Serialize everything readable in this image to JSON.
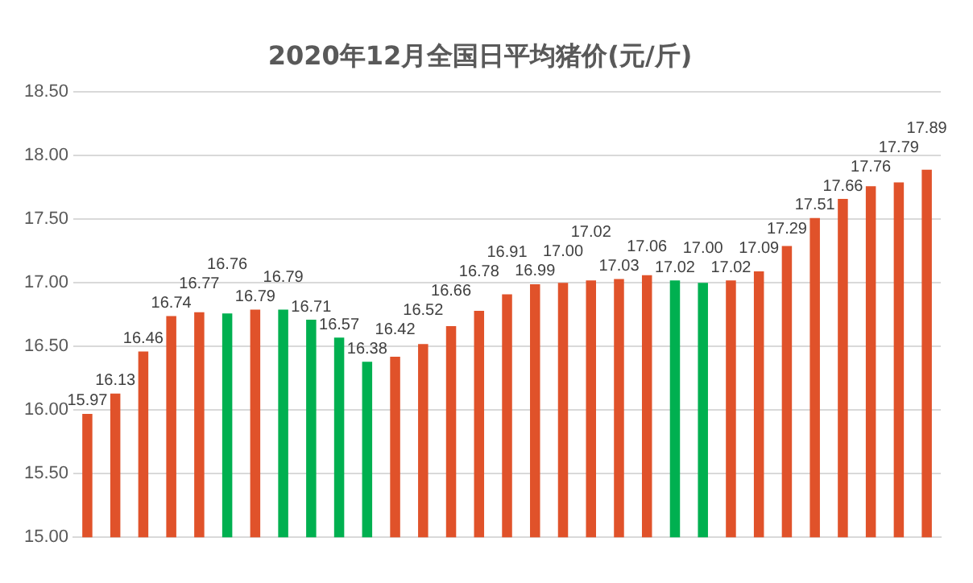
{
  "chart_data": {
    "type": "bar",
    "title": "2020年12月全国日平均猪价(元/斤)",
    "categories": [
      null,
      null,
      null,
      null,
      null,
      null,
      null,
      null,
      null,
      null,
      null,
      null,
      null,
      null,
      null,
      null,
      null,
      null,
      null,
      null,
      null,
      null,
      null,
      null,
      null,
      null,
      null,
      null,
      null,
      null,
      null
    ],
    "values": [
      15.97,
      16.13,
      16.46,
      16.74,
      16.77,
      16.76,
      16.79,
      16.79,
      16.71,
      16.57,
      16.38,
      16.42,
      16.52,
      16.66,
      16.78,
      16.91,
      16.99,
      17.0,
      17.02,
      17.03,
      17.06,
      17.02,
      17.0,
      17.02,
      17.09,
      17.29,
      17.51,
      17.66,
      17.76,
      17.79,
      17.89
    ],
    "value_labels": [
      "15.97",
      "16.13",
      "16.46",
      "16.74",
      "16.77",
      "16.76",
      "16.79",
      "16.79",
      "16.71",
      "16.57",
      "16.38",
      "16.42",
      "16.52",
      "16.66",
      "16.78",
      "16.91",
      "16.99",
      "17.00",
      "17.02",
      "17.03",
      "17.06",
      "17.02",
      "17.00",
      "17.02",
      "17.09",
      "17.29",
      "17.51",
      "17.66",
      "17.76",
      "17.79",
      "17.89"
    ],
    "colors": [
      "#e0522a",
      "#e0522a",
      "#e0522a",
      "#e0522a",
      "#e0522a",
      "#00b050",
      "#e0522a",
      "#00b050",
      "#00b050",
      "#00b050",
      "#00b050",
      "#e0522a",
      "#e0522a",
      "#e0522a",
      "#e0522a",
      "#e0522a",
      "#e0522a",
      "#e0522a",
      "#e0522a",
      "#e0522a",
      "#e0522a",
      "#00b050",
      "#00b050",
      "#e0522a",
      "#e0522a",
      "#e0522a",
      "#e0522a",
      "#e0522a",
      "#e0522a",
      "#e0522a",
      "#e0522a"
    ],
    "ylim": [
      15,
      18.5
    ],
    "yticks": [
      {
        "value": 15,
        "label": "15.00"
      },
      {
        "value": 15.5,
        "label": "15.50"
      },
      {
        "value": 16,
        "label": "16.00"
      },
      {
        "value": 16.5,
        "label": "16.50"
      },
      {
        "value": 17,
        "label": "17.00"
      },
      {
        "value": 17.5,
        "label": "17.50"
      },
      {
        "value": 18,
        "label": "18.00"
      },
      {
        "value": 18.5,
        "label": "18.50"
      }
    ],
    "grid": "y",
    "legend": false
  }
}
